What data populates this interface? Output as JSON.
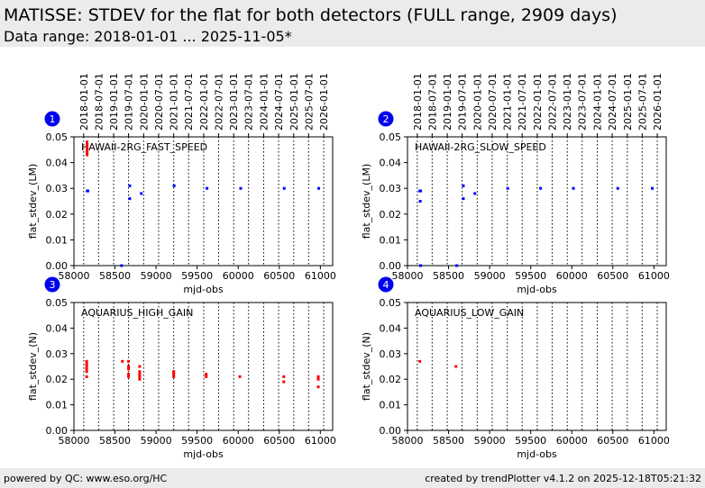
{
  "header": {
    "title": "MATISSE: STDEV for the flat for both detectors (FULL range, 2909 days)",
    "subtitle": "Data range: 2018-01-01 ... 2025-11-05*"
  },
  "footer": {
    "left": "powered by QC: www.eso.org/HC",
    "right": "created by trendPlotter v4.1.2 on 2025-12-18T05:21:32"
  },
  "colors": {
    "blue": "#0000ff",
    "red": "#ff0000",
    "badge": "#0000ee"
  },
  "chart_data": [
    {
      "type": "scatter",
      "badge": "1",
      "label": "HAWAII-2RG_FAST_SPEED",
      "xlabel": "mjd-obs",
      "ylabel": "flat_stdev_(LM)",
      "xlim": [
        58000,
        61150
      ],
      "ylim": [
        0,
        0.05
      ],
      "x_ticks": [
        58000,
        58500,
        59000,
        59500,
        60000,
        60500,
        61000
      ],
      "y_ticks": [
        "0.00",
        "0.01",
        "0.02",
        "0.03",
        "0.04",
        "0.05"
      ],
      "date_ticks": [
        "2018-01-01",
        "2018-07-01",
        "2019-01-01",
        "2019-07-01",
        "2020-01-01",
        "2020-07-01",
        "2021-01-01",
        "2021-07-01",
        "2022-01-01",
        "2022-07-01",
        "2023-01-01",
        "2023-07-01",
        "2024-01-01",
        "2024-07-01",
        "2025-01-01",
        "2025-07-01",
        "2026-01-01"
      ],
      "series": [
        {
          "name": "blue",
          "color": "#0000ff",
          "points": [
            [
              58162,
              0.029
            ],
            [
              58170,
              0.029
            ],
            [
              58680,
              0.031
            ],
            [
              58680,
              0.026
            ],
            [
              58820,
              0.028
            ],
            [
              59220,
              0.031
            ],
            [
              59620,
              0.03
            ],
            [
              60030,
              0.03
            ],
            [
              60560,
              0.03
            ],
            [
              60980,
              0.03
            ],
            [
              58580,
              0.0
            ]
          ]
        },
        {
          "name": "red",
          "color": "#ff0000",
          "points": [
            [
              58160,
              0.048
            ],
            [
              58160,
              0.047
            ],
            [
              58160,
              0.046
            ],
            [
              58160,
              0.045
            ],
            [
              58160,
              0.044
            ],
            [
              58160,
              0.043
            ]
          ]
        }
      ]
    },
    {
      "type": "scatter",
      "badge": "2",
      "label": "HAWAII-2RG_SLOW_SPEED",
      "xlabel": "mjd-obs",
      "ylabel": "flat_stdev_(LM)",
      "xlim": [
        58000,
        61150
      ],
      "ylim": [
        0,
        0.05
      ],
      "x_ticks": [
        58000,
        58500,
        59000,
        59500,
        60000,
        60500,
        61000
      ],
      "y_ticks": [
        "0.00",
        "0.01",
        "0.02",
        "0.03",
        "0.04",
        "0.05"
      ],
      "date_ticks": [
        "2018-01-01",
        "2018-07-01",
        "2019-01-01",
        "2019-07-01",
        "2020-01-01",
        "2020-07-01",
        "2021-01-01",
        "2021-07-01",
        "2022-01-01",
        "2022-07-01",
        "2023-01-01",
        "2023-07-01",
        "2024-01-01",
        "2024-07-01",
        "2025-01-01",
        "2025-07-01",
        "2026-01-01"
      ],
      "series": [
        {
          "name": "blue",
          "color": "#0000ff",
          "points": [
            [
              58150,
              0.029
            ],
            [
              58160,
              0.029
            ],
            [
              58155,
              0.025
            ],
            [
              58680,
              0.031
            ],
            [
              58680,
              0.026
            ],
            [
              58820,
              0.028
            ],
            [
              59220,
              0.03
            ],
            [
              59620,
              0.03
            ],
            [
              60020,
              0.03
            ],
            [
              60560,
              0.03
            ],
            [
              60980,
              0.03
            ],
            [
              58160,
              0.0
            ],
            [
              58600,
              0.0
            ]
          ]
        },
        {
          "name": "red",
          "color": "#ff0000",
          "points": []
        }
      ]
    },
    {
      "type": "scatter",
      "badge": "3",
      "label": "AQUARIUS_HIGH_GAIN",
      "xlabel": "mjd-obs",
      "ylabel": "flat_stdev_(N)",
      "xlim": [
        58000,
        61150
      ],
      "ylim": [
        0,
        0.05
      ],
      "x_ticks": [
        58000,
        58500,
        59000,
        59500,
        60000,
        60500,
        61000
      ],
      "y_ticks": [
        "0.00",
        "0.01",
        "0.02",
        "0.03",
        "0.04",
        "0.05"
      ],
      "date_ticks": [],
      "series": [
        {
          "name": "red",
          "color": "#ff0000",
          "points": [
            [
              58155,
              0.027
            ],
            [
              58155,
              0.026
            ],
            [
              58155,
              0.025
            ],
            [
              58155,
              0.024
            ],
            [
              58155,
              0.023
            ],
            [
              58155,
              0.021
            ],
            [
              58590,
              0.027
            ],
            [
              58665,
              0.027
            ],
            [
              58665,
              0.025
            ],
            [
              58665,
              0.024
            ],
            [
              58665,
              0.022
            ],
            [
              58665,
              0.021
            ],
            [
              58800,
              0.025
            ],
            [
              58800,
              0.023
            ],
            [
              58800,
              0.022
            ],
            [
              58800,
              0.021
            ],
            [
              58800,
              0.02
            ],
            [
              59215,
              0.023
            ],
            [
              59215,
              0.022
            ],
            [
              59215,
              0.021
            ],
            [
              59610,
              0.022
            ],
            [
              59610,
              0.021
            ],
            [
              60020,
              0.021
            ],
            [
              60555,
              0.021
            ],
            [
              60555,
              0.019
            ],
            [
              60975,
              0.021
            ],
            [
              60975,
              0.02
            ],
            [
              60975,
              0.017
            ]
          ]
        }
      ]
    },
    {
      "type": "scatter",
      "badge": "4",
      "label": "AQUARIUS_LOW_GAIN",
      "xlabel": "mjd-obs",
      "ylabel": "flat_stdev_(N)",
      "xlim": [
        58000,
        61150
      ],
      "ylim": [
        0,
        0.05
      ],
      "x_ticks": [
        58000,
        58500,
        59000,
        59500,
        60000,
        60500,
        61000
      ],
      "y_ticks": [
        "0.00",
        "0.01",
        "0.02",
        "0.03",
        "0.04",
        "0.05"
      ],
      "date_ticks": [],
      "series": [
        {
          "name": "red",
          "color": "#ff0000",
          "points": [
            [
              58150,
              0.027
            ],
            [
              58590,
              0.025
            ]
          ]
        }
      ]
    }
  ]
}
